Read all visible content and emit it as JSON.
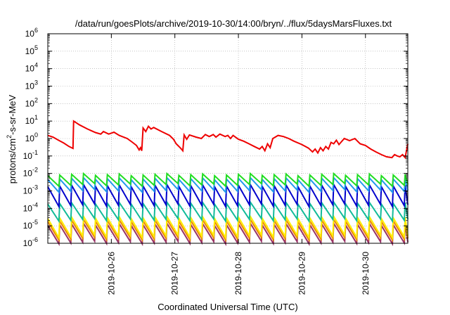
{
  "chart_data": {
    "type": "line",
    "title": "/data/run/goesPlots/archive/2019-10-30/14:00/bryn/../flux/5daysMarsFluxes.txt",
    "xlabel": "Coordinated Universal Time (UTC)",
    "ylabel_base": "protons/cm",
    "ylabel_sup": "2",
    "ylabel_rest": "-s-sr-MeV",
    "y_scale": "log",
    "ylim": [
      1e-06,
      1000000.0
    ],
    "y_ticks": [
      {
        "base": "10",
        "exp": "-6"
      },
      {
        "base": "10",
        "exp": "-5"
      },
      {
        "base": "10",
        "exp": "-4"
      },
      {
        "base": "10",
        "exp": "-3"
      },
      {
        "base": "10",
        "exp": "-2"
      },
      {
        "base": "10",
        "exp": "-1"
      },
      {
        "base": "10",
        "exp": "0"
      },
      {
        "base": "10",
        "exp": "1"
      },
      {
        "base": "10",
        "exp": "2"
      },
      {
        "base": "10",
        "exp": "3"
      },
      {
        "base": "10",
        "exp": "4"
      },
      {
        "base": "10",
        "exp": "5"
      },
      {
        "base": "10",
        "exp": "6"
      }
    ],
    "xlim": [
      "2019-10-25T00:00",
      "2019-10-30T16:00"
    ],
    "x_ticks": [
      "2019-10-26",
      "2019-10-27",
      "2019-10-28",
      "2019-10-29",
      "2019-10-30"
    ],
    "grid": true,
    "legend": "none",
    "series": [
      {
        "color": "#ee0000",
        "points": [
          [
            "2019-10-25T00:00",
            1.5
          ],
          [
            "2019-10-25T02:00",
            1.2
          ],
          [
            "2019-10-25T04:00",
            0.8
          ],
          [
            "2019-10-25T06:00",
            0.55
          ],
          [
            "2019-10-25T08:00",
            0.35
          ],
          [
            "2019-10-25T09:30",
            0.27
          ],
          [
            "2019-10-25T09:45",
            10
          ],
          [
            "2019-10-25T12:00",
            6
          ],
          [
            "2019-10-25T15:00",
            3.5
          ],
          [
            "2019-10-25T18:00",
            2.2
          ],
          [
            "2019-10-25T20:00",
            1.8
          ],
          [
            "2019-10-25T21:00",
            2.5
          ],
          [
            "2019-10-25T23:00",
            1.8
          ],
          [
            "2019-10-26T01:00",
            2.3
          ],
          [
            "2019-10-26T03:00",
            1.5
          ],
          [
            "2019-10-26T06:00",
            1.0
          ],
          [
            "2019-10-26T08:00",
            0.6
          ],
          [
            "2019-10-26T09:30",
            0.4
          ],
          [
            "2019-10-26T10:30",
            0.22
          ],
          [
            "2019-10-26T11:00",
            0.3
          ],
          [
            "2019-10-26T11:30",
            0.2
          ],
          [
            "2019-10-26T12:00",
            4
          ],
          [
            "2019-10-26T13:00",
            2.5
          ],
          [
            "2019-10-26T14:00",
            5
          ],
          [
            "2019-10-26T15:00",
            3.5
          ],
          [
            "2019-10-26T16:00",
            4.3
          ],
          [
            "2019-10-26T19:00",
            2.5
          ],
          [
            "2019-10-26T22:00",
            1.5
          ],
          [
            "2019-10-26T23:30",
            0.9
          ],
          [
            "2019-10-27T00:30",
            0.5
          ],
          [
            "2019-10-27T02:00",
            0.3
          ],
          [
            "2019-10-27T03:00",
            0.2
          ],
          [
            "2019-10-27T03:30",
            1.6
          ],
          [
            "2019-10-27T04:30",
            0.9
          ],
          [
            "2019-10-27T05:30",
            1.6
          ],
          [
            "2019-10-27T08:00",
            1.2
          ],
          [
            "2019-10-27T10:00",
            1.0
          ],
          [
            "2019-10-27T11:30",
            1.7
          ],
          [
            "2019-10-27T13:00",
            1.3
          ],
          [
            "2019-10-27T14:30",
            1.7
          ],
          [
            "2019-10-27T15:30",
            1.2
          ],
          [
            "2019-10-27T17:00",
            1.8
          ],
          [
            "2019-10-27T19:00",
            1.3
          ],
          [
            "2019-10-27T20:00",
            1.5
          ],
          [
            "2019-10-27T21:00",
            1.0
          ],
          [
            "2019-10-27T22:00",
            1.5
          ],
          [
            "2019-10-28T00:00",
            0.9
          ],
          [
            "2019-10-28T02:00",
            0.7
          ],
          [
            "2019-10-28T04:00",
            0.5
          ],
          [
            "2019-10-28T06:00",
            0.35
          ],
          [
            "2019-10-28T08:00",
            0.25
          ],
          [
            "2019-10-28T09:00",
            0.35
          ],
          [
            "2019-10-28T10:00",
            0.2
          ],
          [
            "2019-10-28T11:00",
            0.5
          ],
          [
            "2019-10-28T12:00",
            0.3
          ],
          [
            "2019-10-28T13:00",
            1.0
          ],
          [
            "2019-10-28T15:00",
            1.5
          ],
          [
            "2019-10-28T17:00",
            1.3
          ],
          [
            "2019-10-28T19:00",
            1.0
          ],
          [
            "2019-10-28T21:00",
            0.7
          ],
          [
            "2019-10-29T00:00",
            0.45
          ],
          [
            "2019-10-29T02:30",
            0.28
          ],
          [
            "2019-10-29T04:00",
            0.17
          ],
          [
            "2019-10-29T05:00",
            0.25
          ],
          [
            "2019-10-29T06:00",
            0.15
          ],
          [
            "2019-10-29T07:00",
            0.3
          ],
          [
            "2019-10-29T08:00",
            0.2
          ],
          [
            "2019-10-29T09:00",
            0.35
          ],
          [
            "2019-10-29T10:00",
            0.25
          ],
          [
            "2019-10-29T11:00",
            0.6
          ],
          [
            "2019-10-29T12:00",
            0.5
          ],
          [
            "2019-10-29T13:00",
            0.8
          ],
          [
            "2019-10-29T14:00",
            0.45
          ],
          [
            "2019-10-29T16:00",
            1.0
          ],
          [
            "2019-10-29T18:00",
            0.75
          ],
          [
            "2019-10-29T20:00",
            1.0
          ],
          [
            "2019-10-29T21:00",
            0.7
          ],
          [
            "2019-10-29T22:00",
            0.5
          ],
          [
            "2019-10-30T00:00",
            0.4
          ],
          [
            "2019-10-30T02:00",
            0.25
          ],
          [
            "2019-10-30T04:00",
            0.17
          ],
          [
            "2019-10-30T06:00",
            0.12
          ],
          [
            "2019-10-30T08:00",
            0.09
          ],
          [
            "2019-10-30T10:00",
            0.08
          ],
          [
            "2019-10-30T11:00",
            0.12
          ],
          [
            "2019-10-30T12:00",
            0.1
          ],
          [
            "2019-10-30T13:00",
            0.09
          ],
          [
            "2019-10-30T14:00",
            0.12
          ],
          [
            "2019-10-30T15:00",
            0.08
          ],
          [
            "2019-10-30T16:00",
            0.5
          ]
        ]
      },
      {
        "color": "#22dd22",
        "pattern": "sawtooth",
        "period_hours": 4.5,
        "peak": 0.0085,
        "trough": 0.0022
      },
      {
        "color": "#2299ee",
        "pattern": "sawtooth",
        "period_hours": 4.5,
        "peak": 0.005,
        "trough": 0.001
      },
      {
        "color": "#0000cc",
        "pattern": "sawtooth",
        "period_hours": 4.5,
        "peak": 0.002,
        "trough": 0.00015
      },
      {
        "color": "#11bb99",
        "pattern": "sawtooth",
        "period_hours": 4.5,
        "peak": 0.0002,
        "trough": 2.2e-05
      },
      {
        "color": "#ffee00",
        "pattern": "sawtooth",
        "period_hours": 4.5,
        "peak": 3e-05,
        "trough": 2.5e-06
      },
      {
        "color": "#ee8800",
        "pattern": "sawtooth",
        "period_hours": 4.5,
        "peak": 2e-05,
        "trough": 1.8e-06
      },
      {
        "color": "#993366",
        "pattern": "sawtooth",
        "period_hours": 4.5,
        "peak": 1.2e-05,
        "trough": 1.1e-06
      }
    ]
  }
}
